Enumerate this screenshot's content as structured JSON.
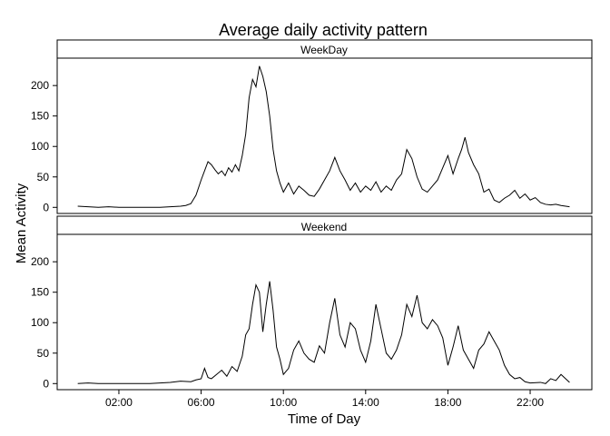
{
  "chart_data": {
    "type": "line",
    "title": "Average daily activity pattern",
    "xlabel": "Time of Day",
    "ylabel": "Mean Activity",
    "xlim": [
      "-01:00",
      "25:00"
    ],
    "ylim": [
      -10,
      245
    ],
    "xticks": [
      "02:00",
      "06:00",
      "10:00",
      "14:00",
      "18:00",
      "22:00"
    ],
    "yticks": [
      0,
      50,
      100,
      150,
      200
    ],
    "grid": false,
    "panels": [
      {
        "name": "WeekDay",
        "points": [
          [
            "00:00",
            2
          ],
          [
            "00:30",
            1
          ],
          [
            "01:00",
            0
          ],
          [
            "01:30",
            1
          ],
          [
            "02:00",
            0
          ],
          [
            "02:30",
            0
          ],
          [
            "03:00",
            0
          ],
          [
            "03:30",
            0
          ],
          [
            "04:00",
            0
          ],
          [
            "04:30",
            1
          ],
          [
            "05:00",
            2
          ],
          [
            "05:15",
            3
          ],
          [
            "05:30",
            6
          ],
          [
            "05:45",
            20
          ],
          [
            "06:00",
            45
          ],
          [
            "06:10",
            60
          ],
          [
            "06:20",
            75
          ],
          [
            "06:30",
            70
          ],
          [
            "06:40",
            62
          ],
          [
            "06:50",
            55
          ],
          [
            "07:00",
            60
          ],
          [
            "07:10",
            52
          ],
          [
            "07:20",
            65
          ],
          [
            "07:30",
            58
          ],
          [
            "07:40",
            70
          ],
          [
            "07:50",
            60
          ],
          [
            "08:00",
            85
          ],
          [
            "08:10",
            120
          ],
          [
            "08:20",
            180
          ],
          [
            "08:30",
            210
          ],
          [
            "08:40",
            198
          ],
          [
            "08:50",
            232
          ],
          [
            "09:00",
            215
          ],
          [
            "09:10",
            190
          ],
          [
            "09:20",
            150
          ],
          [
            "09:30",
            95
          ],
          [
            "09:40",
            60
          ],
          [
            "09:50",
            40
          ],
          [
            "10:00",
            25
          ],
          [
            "10:15",
            40
          ],
          [
            "10:30",
            22
          ],
          [
            "10:45",
            35
          ],
          [
            "11:00",
            28
          ],
          [
            "11:15",
            20
          ],
          [
            "11:30",
            18
          ],
          [
            "11:45",
            30
          ],
          [
            "12:00",
            45
          ],
          [
            "12:15",
            60
          ],
          [
            "12:30",
            82
          ],
          [
            "12:45",
            60
          ],
          [
            "13:00",
            45
          ],
          [
            "13:15",
            28
          ],
          [
            "13:30",
            40
          ],
          [
            "13:45",
            25
          ],
          [
            "14:00",
            35
          ],
          [
            "14:15",
            28
          ],
          [
            "14:30",
            42
          ],
          [
            "14:45",
            25
          ],
          [
            "15:00",
            35
          ],
          [
            "15:15",
            28
          ],
          [
            "15:30",
            45
          ],
          [
            "15:45",
            55
          ],
          [
            "16:00",
            95
          ],
          [
            "16:15",
            80
          ],
          [
            "16:30",
            50
          ],
          [
            "16:45",
            30
          ],
          [
            "17:00",
            25
          ],
          [
            "17:15",
            35
          ],
          [
            "17:30",
            45
          ],
          [
            "17:45",
            65
          ],
          [
            "18:00",
            85
          ],
          [
            "18:15",
            55
          ],
          [
            "18:30",
            80
          ],
          [
            "18:40",
            95
          ],
          [
            "18:50",
            115
          ],
          [
            "19:00",
            90
          ],
          [
            "19:15",
            70
          ],
          [
            "19:30",
            55
          ],
          [
            "19:45",
            25
          ],
          [
            "20:00",
            30
          ],
          [
            "20:15",
            12
          ],
          [
            "20:30",
            8
          ],
          [
            "20:45",
            15
          ],
          [
            "21:00",
            20
          ],
          [
            "21:15",
            28
          ],
          [
            "21:30",
            15
          ],
          [
            "21:45",
            22
          ],
          [
            "22:00",
            12
          ],
          [
            "22:15",
            16
          ],
          [
            "22:30",
            8
          ],
          [
            "22:45",
            5
          ],
          [
            "23:00",
            4
          ],
          [
            "23:15",
            5
          ],
          [
            "23:30",
            3
          ],
          [
            "23:55",
            1
          ]
        ]
      },
      {
        "name": "Weekend",
        "points": [
          [
            "00:00",
            0
          ],
          [
            "00:30",
            1
          ],
          [
            "01:00",
            0
          ],
          [
            "01:30",
            0
          ],
          [
            "02:00",
            0
          ],
          [
            "02:30",
            0
          ],
          [
            "03:00",
            0
          ],
          [
            "03:30",
            0
          ],
          [
            "04:00",
            1
          ],
          [
            "04:30",
            2
          ],
          [
            "05:00",
            4
          ],
          [
            "05:30",
            3
          ],
          [
            "05:45",
            6
          ],
          [
            "06:00",
            8
          ],
          [
            "06:10",
            25
          ],
          [
            "06:20",
            10
          ],
          [
            "06:30",
            8
          ],
          [
            "06:45",
            15
          ],
          [
            "07:00",
            22
          ],
          [
            "07:15",
            12
          ],
          [
            "07:30",
            28
          ],
          [
            "07:45",
            20
          ],
          [
            "08:00",
            45
          ],
          [
            "08:10",
            80
          ],
          [
            "08:20",
            90
          ],
          [
            "08:30",
            130
          ],
          [
            "08:40",
            162
          ],
          [
            "08:50",
            150
          ],
          [
            "09:00",
            85
          ],
          [
            "09:10",
            130
          ],
          [
            "09:20",
            168
          ],
          [
            "09:30",
            120
          ],
          [
            "09:40",
            60
          ],
          [
            "09:50",
            40
          ],
          [
            "10:00",
            15
          ],
          [
            "10:15",
            25
          ],
          [
            "10:30",
            55
          ],
          [
            "10:45",
            70
          ],
          [
            "11:00",
            50
          ],
          [
            "11:15",
            40
          ],
          [
            "11:30",
            35
          ],
          [
            "11:45",
            62
          ],
          [
            "12:00",
            50
          ],
          [
            "12:15",
            100
          ],
          [
            "12:30",
            140
          ],
          [
            "12:45",
            80
          ],
          [
            "13:00",
            60
          ],
          [
            "13:15",
            100
          ],
          [
            "13:30",
            90
          ],
          [
            "13:45",
            55
          ],
          [
            "14:00",
            35
          ],
          [
            "14:15",
            70
          ],
          [
            "14:30",
            130
          ],
          [
            "14:45",
            90
          ],
          [
            "15:00",
            50
          ],
          [
            "15:15",
            40
          ],
          [
            "15:30",
            55
          ],
          [
            "15:45",
            80
          ],
          [
            "16:00",
            130
          ],
          [
            "16:15",
            110
          ],
          [
            "16:30",
            145
          ],
          [
            "16:45",
            100
          ],
          [
            "17:00",
            90
          ],
          [
            "17:15",
            105
          ],
          [
            "17:30",
            95
          ],
          [
            "17:45",
            75
          ],
          [
            "18:00",
            30
          ],
          [
            "18:15",
            60
          ],
          [
            "18:30",
            95
          ],
          [
            "18:45",
            55
          ],
          [
            "19:00",
            40
          ],
          [
            "19:15",
            25
          ],
          [
            "19:30",
            55
          ],
          [
            "19:45",
            65
          ],
          [
            "20:00",
            85
          ],
          [
            "20:15",
            70
          ],
          [
            "20:30",
            55
          ],
          [
            "20:45",
            30
          ],
          [
            "21:00",
            15
          ],
          [
            "21:15",
            8
          ],
          [
            "21:30",
            10
          ],
          [
            "21:45",
            3
          ],
          [
            "22:00",
            1
          ],
          [
            "22:30",
            2
          ],
          [
            "22:45",
            0
          ],
          [
            "23:00",
            8
          ],
          [
            "23:15",
            5
          ],
          [
            "23:30",
            15
          ],
          [
            "23:55",
            2
          ]
        ]
      }
    ]
  }
}
